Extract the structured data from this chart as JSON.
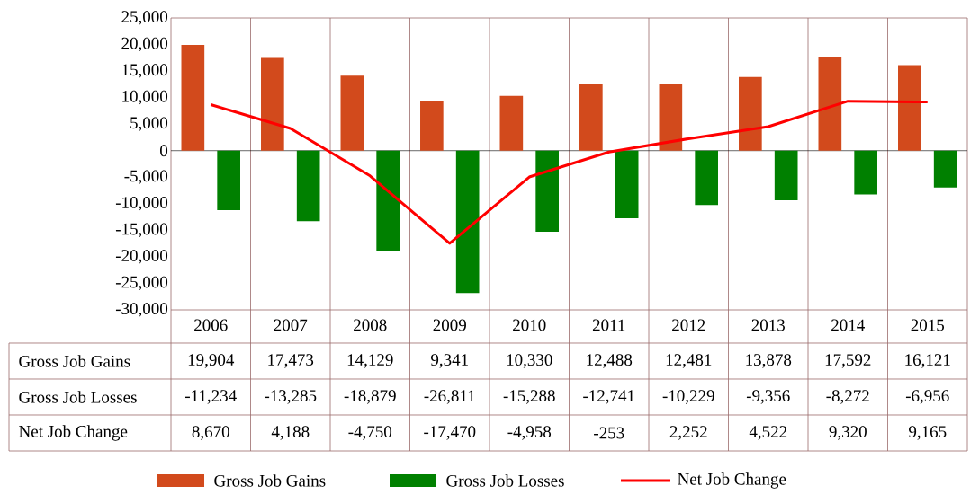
{
  "chart_data": {
    "type": "bar",
    "categories": [
      "2006",
      "2007",
      "2008",
      "2009",
      "2010",
      "2011",
      "2012",
      "2013",
      "2014",
      "2015"
    ],
    "series": [
      {
        "name": "Gross Job Gains",
        "color": "#d24a1c",
        "values": [
          19904,
          17473,
          14129,
          9341,
          10330,
          12488,
          12481,
          13878,
          17592,
          16121
        ],
        "value_labels": [
          "19,904",
          "17,473",
          "14,129",
          "9,341",
          "10,330",
          "12,488",
          "12,481",
          "13,878",
          "17,592",
          "16,121"
        ]
      },
      {
        "name": "Gross Job Losses",
        "color": "#008000",
        "values": [
          -11234,
          -13285,
          -18879,
          -26811,
          -15288,
          -12741,
          -10229,
          -9356,
          -8272,
          -6956
        ],
        "value_labels": [
          "-11,234",
          "-13,285",
          "-18,879",
          "-26,811",
          "-15,288",
          "-12,741",
          "-10,229",
          "-9,356",
          "-8,272",
          "-6,956"
        ]
      },
      {
        "name": "Net Job Change",
        "type": "line",
        "color": "#ff0000",
        "values": [
          8670,
          4188,
          -4750,
          -17470,
          -4958,
          -253,
          2252,
          4522,
          9320,
          9165
        ],
        "value_labels": [
          "8,670",
          "4,188",
          "-4,750",
          "-17,470",
          "-4,958",
          "-253",
          "2,252",
          "4,522",
          "9,320",
          "9,165"
        ]
      }
    ],
    "ylim": [
      -30000,
      25000
    ],
    "yticks": [
      {
        "value": -30000,
        "label": "-30,000"
      },
      {
        "value": -25000,
        "label": "-25,000"
      },
      {
        "value": -20000,
        "label": "-20,000"
      },
      {
        "value": -15000,
        "label": "-15,000"
      },
      {
        "value": -10000,
        "label": "-10,000"
      },
      {
        "value": -5000,
        "label": "-5,000"
      },
      {
        "value": 0,
        "label": "0"
      },
      {
        "value": 5000,
        "label": "5,000"
      },
      {
        "value": 10000,
        "label": "10,000"
      },
      {
        "value": 15000,
        "label": "15,000"
      },
      {
        "value": 20000,
        "label": "20,000"
      },
      {
        "value": 25000,
        "label": "25,000"
      }
    ],
    "grid": "x",
    "legend": "bottom"
  }
}
